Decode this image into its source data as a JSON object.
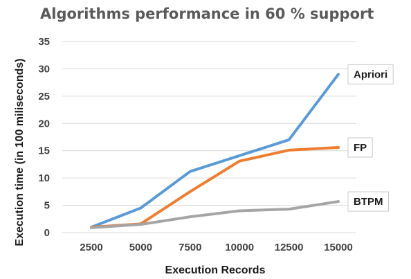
{
  "chart_data": {
    "type": "line",
    "title": "Algorithms performance in 60 % support",
    "xlabel": "Execution Records",
    "ylabel": "Execution time (in 100 miliseconds)",
    "categories": [
      "2500",
      "5000",
      "7500",
      "10000",
      "12500",
      "15000"
    ],
    "ylim": [
      0,
      35
    ],
    "yticks": [
      0,
      5,
      10,
      15,
      20,
      25,
      30,
      35
    ],
    "grid": true,
    "legend": "data labels at line ends",
    "series": [
      {
        "name": "Apriori",
        "color": "#5b9bd5",
        "values": [
          1.0,
          4.5,
          11.2,
          14.1,
          17.0,
          29.0
        ]
      },
      {
        "name": "FP",
        "color": "#ed7d31",
        "values": [
          1.0,
          1.6,
          7.5,
          13.1,
          15.1,
          15.6
        ]
      },
      {
        "name": "BTPM",
        "color": "#a5a5a5",
        "values": [
          0.9,
          1.5,
          2.9,
          4.0,
          4.3,
          5.7
        ]
      }
    ]
  }
}
